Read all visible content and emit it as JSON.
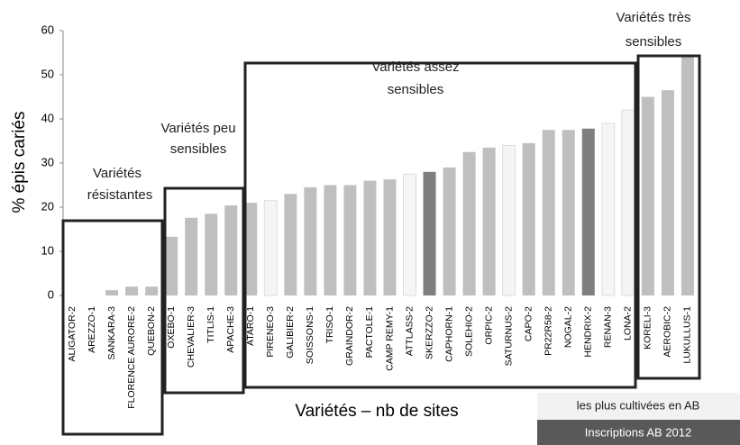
{
  "chart_data": {
    "type": "bar",
    "y_label": "% épis cariés",
    "x_label": "Variétés – nb de sites",
    "categories": [
      "ALIGATOR-2",
      "AREZZO-1",
      "SANKARA-3",
      "FLORENCE AURORE-2",
      "QUEBON-2",
      "OXEBO-1",
      "CHEVALIER-3",
      "TITLIS-1",
      "APACHE-3",
      "ATARO-1",
      "PIRENEO-3",
      "GALIBIER-2",
      "SOISSONS-1",
      "TRISO-1",
      "GRAINDOR-2",
      "PACTOLE-1",
      "CAMP REMY-1",
      "ATTLASS-2",
      "SKERZZO-2",
      "CAPHORN-1",
      "SOLEHIO-2",
      "ORPIC-2",
      "SATURNUS-2",
      "CAPO-2",
      "PR22R58-2",
      "NOGAL-2",
      "HENDRIX-2",
      "RENAN-3",
      "LONA-2",
      "KORELI-3",
      "AEROBIC-2",
      "LUKULLUS-1"
    ],
    "values": [
      0,
      0,
      1.2,
      2,
      2,
      13.3,
      17.6,
      18.5,
      20.4,
      21,
      21.5,
      23,
      24.5,
      25,
      25,
      26,
      26.3,
      27.5,
      28,
      29,
      32.5,
      33.5,
      34,
      34.5,
      37.5,
      37.5,
      37.8,
      39,
      42,
      45,
      46.5,
      54
    ],
    "colors": [
      "#bfbfbf",
      "#bfbfbf",
      "#bfbfbf",
      "#bfbfbf",
      "#bfbfbf",
      "#bfbfbf",
      "#bfbfbf",
      "#bfbfbf",
      "#bfbfbf",
      "#bfbfbf",
      "#f5f5f5",
      "#bfbfbf",
      "#bfbfbf",
      "#bfbfbf",
      "#bfbfbf",
      "#bfbfbf",
      "#bfbfbf",
      "#f5f5f5",
      "#7f7f7f",
      "#bfbfbf",
      "#bfbfbf",
      "#bfbfbf",
      "#f5f5f5",
      "#bfbfbf",
      "#bfbfbf",
      "#bfbfbf",
      "#7f7f7f",
      "#f5f5f5",
      "#f5f5f5",
      "#bfbfbf",
      "#bfbfbf",
      "#bfbfbf"
    ],
    "ylim": [
      0,
      60
    ],
    "yticks": [
      0,
      10,
      20,
      30,
      40,
      50,
      60
    ],
    "grid": false,
    "annotations": [
      [
        "Variétés",
        "résistantes"
      ],
      [
        "Variétés peu",
        "sensibles"
      ],
      [
        "Variétés assez",
        "sensibles"
      ],
      [
        "Variétés très",
        "sensibles"
      ]
    ],
    "legend": [
      {
        "label": "les plus cultivées en AB",
        "color": "#f2f2f2"
      },
      {
        "label": "Inscriptions AB 2012",
        "color": "#595959"
      }
    ]
  }
}
